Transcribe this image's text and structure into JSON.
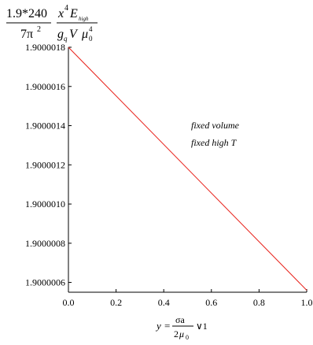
{
  "chart_data": {
    "type": "line",
    "ylabel": {
      "num_left": "1.9*240",
      "den_left": "7π",
      "den_left_sup": "2",
      "num_right_x": "x",
      "num_right_sup": "4",
      "num_right_E": "E",
      "num_right_sub": "high",
      "den_right_g": "g",
      "den_right_g_sub": "q",
      "den_right_V": "V",
      "den_right_mu": "μ",
      "den_right_mu_sup": "4",
      "den_right_mu_sub": "0"
    },
    "xlabel": {
      "y": "y",
      "eq": "=",
      "frac_num": "σa",
      "frac_den_coef": "2",
      "frac_den_mu": "μ",
      "frac_den_sub": "0",
      "tail": "∨1"
    },
    "annotations": [
      "fixed volume",
      "fixed high T"
    ],
    "xlim": [
      0.0,
      1.0
    ],
    "ylim": [
      1.90000055,
      1.9000018
    ],
    "x_ticks": [
      "0.0",
      "0.2",
      "0.4",
      "0.6",
      "0.8",
      "1.0"
    ],
    "y_ticks": [
      "1.9000006",
      "1.9000008",
      "1.9000010",
      "1.9000012",
      "1.9000014",
      "1.9000016",
      "1.9000018"
    ],
    "series": [
      {
        "color": "#e8211a",
        "x": [
          0.0,
          1.0
        ],
        "y": [
          1.9000018,
          1.90000056
        ]
      }
    ],
    "grid": false,
    "legend": "none"
  }
}
